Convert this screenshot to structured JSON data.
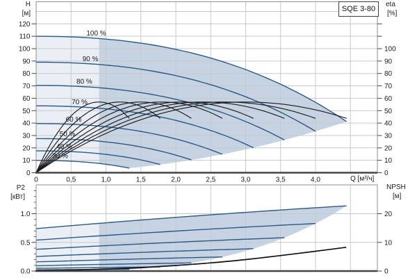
{
  "title_box": {
    "label": "SQE 3-80"
  },
  "colors": {
    "curve_blue": "#2a5a85",
    "curve_black": "#1c1c1c",
    "npsh_black": "#0f0f0f",
    "fill_light": "#eaeff6",
    "fill_dark_overlay": "rgba(140,165,197,0.38)",
    "grid": "#c6c9cc",
    "frame": "#8f8f8f",
    "axis": "#454545",
    "text": "#1a1a1a"
  },
  "chart_data": [
    {
      "type": "line",
      "name": "head-efficiency-chart",
      "xlabel": "Q [м³/ч]",
      "xlim": [
        0,
        4.89
      ],
      "x_ticks": [
        {
          "q": 0,
          "label": "0"
        },
        {
          "q": 0.5,
          "label": "0,5"
        },
        {
          "q": 1.0,
          "label": "1,0"
        },
        {
          "q": 1.5,
          "label": "1,5"
        },
        {
          "q": 2.0,
          "label": "2,0"
        },
        {
          "q": 2.5,
          "label": "2,5"
        },
        {
          "q": 3.0,
          "label": "3,0"
        },
        {
          "q": 3.5,
          "label": "3,5"
        },
        {
          "q": 4.0,
          "label": "4,0"
        }
      ],
      "left_axis": {
        "title": "H",
        "unit": "[м]",
        "ticks": [
          0,
          10,
          20,
          30,
          40,
          50,
          60,
          70,
          80,
          90,
          100,
          110,
          120
        ],
        "lim": [
          0,
          137.8
        ]
      },
      "right_axis": {
        "title": "eta",
        "unit": "[%]",
        "ticks": [
          0,
          10,
          20,
          30,
          40,
          50,
          60,
          70,
          80,
          90,
          100
        ],
        "tick_dashes_to": 120,
        "lim": [
          0,
          137.8
        ]
      },
      "speeds": [
        {
          "percent": 30,
          "label": "30 %",
          "label_q": 0.343
        },
        {
          "percent": 40,
          "label": "40 %",
          "label_q": 0.403
        },
        {
          "percent": 50,
          "label": "50 %",
          "label_q": 0.448
        },
        {
          "percent": 60,
          "label": "60 %",
          "label_q": 0.537
        },
        {
          "percent": 70,
          "label": "70 %",
          "label_q": 0.622
        },
        {
          "percent": 80,
          "label": "80 %",
          "label_q": 0.69
        },
        {
          "percent": 90,
          "label": "90 %",
          "label_q": 0.776
        },
        {
          "percent": 100,
          "label": "100 %",
          "label_q": 0.861
        }
      ],
      "pump_model": {
        "h0_m": 110,
        "a": 1.95,
        "b": 0.345,
        "q_max_m3h": 4.444,
        "h_at_qmax_m": 41.2
      },
      "efficiency_model": {
        "eta_max_pct": 57,
        "q_bep_m3h": 3.0,
        "eta_at_qmax_pct": 43.8
      },
      "duty_range_q_min_m3h": 0.9
    },
    {
      "type": "line",
      "name": "power-npsh-chart",
      "x_axis_shared_with_top": true,
      "left_axis": {
        "title": "P2",
        "unit": "[кВт]",
        "ticks": [
          {
            "v": 0,
            "label": "0.0"
          },
          {
            "v": 0.5,
            "label": "0.5"
          },
          {
            "v": 1.0,
            "label": "1.0"
          }
        ],
        "minor_tick_step": 0.1,
        "lim": [
          0,
          1.5
        ]
      },
      "right_axis": {
        "title": "NPSH",
        "unit": "[м]",
        "ticks": [
          0,
          10,
          20
        ],
        "lim": [
          0,
          30.1
        ]
      },
      "power_model": {
        "p2_at_zero_flow_kw": 0.74,
        "c1": 0.105,
        "c2": -0.0035,
        "p2_at_qmax_kw": 1.137
      },
      "npsh_curve_points": [
        [
          0,
          0.25
        ],
        [
          0.5,
          0.4
        ],
        [
          1.0,
          0.7
        ],
        [
          1.5,
          1.2
        ],
        [
          2.0,
          1.95
        ],
        [
          2.5,
          2.85
        ],
        [
          3.0,
          4.0
        ],
        [
          3.5,
          5.4
        ],
        [
          4.0,
          6.9
        ],
        [
          4.44,
          8.3
        ]
      ],
      "duty_range_q_min_m3h": 0.9
    }
  ]
}
